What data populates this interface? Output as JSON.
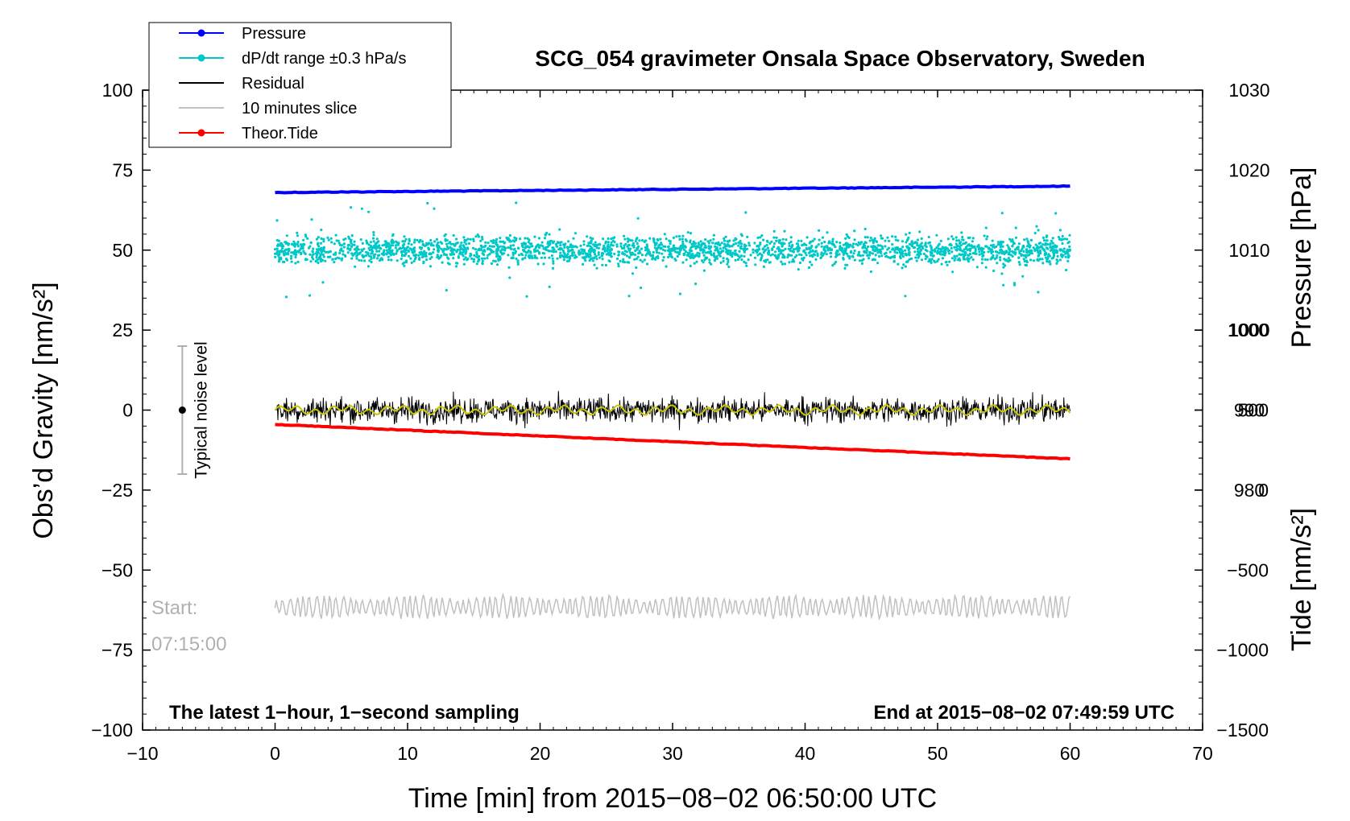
{
  "chart_data": {
    "type": "scatter",
    "title": "SCG_054 gravimeter Onsala Space Observatory, Sweden",
    "xlabel": "Time [min] from 2015−08−02 06:50:00 UTC",
    "xlim": [
      -10,
      70
    ],
    "xticks": [
      "−10",
      "0",
      "10",
      "20",
      "30",
      "40",
      "50",
      "60",
      "70"
    ],
    "ylabel_left": "Obs’d Gravity [nm/s²]",
    "ylim_left": [
      -100,
      100
    ],
    "yticks_left": [
      "100",
      "75",
      "50",
      "25",
      "0",
      "−25",
      "−50",
      "−75",
      "−100"
    ],
    "ylabel_right_pressure": "Pressure [hPa]",
    "yticks_right_pressure": [
      "1030",
      "1020",
      "1010",
      "1000",
      "990",
      "980"
    ],
    "ylabel_right_tide": "Tide [nm/s²]",
    "yticks_right_tide": [
      "1000",
      "500",
      "0",
      "−500",
      "−1000",
      "−1500"
    ],
    "legend_position": "top-left",
    "series": [
      {
        "name": "Pressure",
        "color": "#0000ff",
        "style": "line-marker",
        "x": [
          0,
          60
        ],
        "values": [
          1017.2,
          1018.0
        ],
        "axis": "pressure"
      },
      {
        "name": "dP/dt range ±0.3 hPa/s",
        "color": "#00c8c8",
        "style": "dots",
        "x_range": [
          0,
          60
        ],
        "center": 50,
        "spread": 4,
        "axis": "gravity"
      },
      {
        "name": "Residual",
        "color": "#000000",
        "style": "noise",
        "x_range": [
          0,
          60
        ],
        "center": 0,
        "spread": 4,
        "axis": "gravity"
      },
      {
        "name": "10 minutes slice",
        "color": "#c0c0c0",
        "style": "wave",
        "x_range": [
          0,
          60
        ],
        "center": -61.5,
        "spread": 3.5,
        "axis": "gravity"
      },
      {
        "name": "Theor.Tide",
        "color": "#ff0000",
        "style": "line-marker",
        "x": [
          0,
          60
        ],
        "values": [
          410,
          195
        ],
        "axis": "tide"
      }
    ],
    "smoothed_residual_color": "#c8c800",
    "noise_indicator": {
      "label": "Typical noise level",
      "x": -7,
      "center": 0,
      "range": [
        -20,
        20
      ]
    },
    "annotations": {
      "bottom_left": "The latest 1−hour, 1−second sampling",
      "bottom_right": "End at 2015−08−02 07:49:59 UTC",
      "start_label": "Start:",
      "start_time": "07:15:00"
    }
  }
}
